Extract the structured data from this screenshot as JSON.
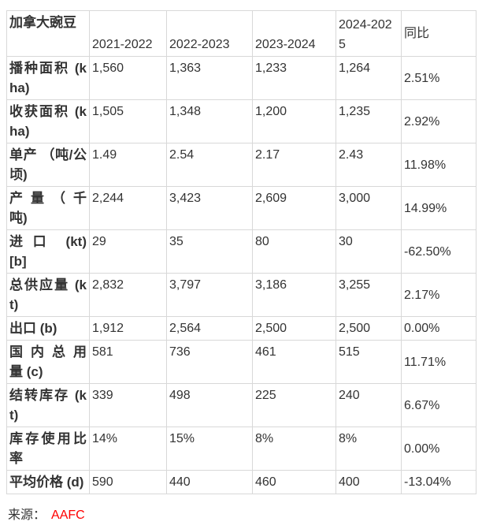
{
  "chart_data": {
    "type": "table",
    "title": "加拿大豌豆",
    "columns": [
      "2021-2022",
      "2022-2023",
      "2023-2024",
      "2024-2025",
      "同比"
    ],
    "rows": [
      {
        "label": "播种面积 (kha)",
        "values": [
          "1,560",
          "1,363",
          "1,233",
          "1,264",
          "2.51%"
        ]
      },
      {
        "label": "收获面积 (kha)",
        "values": [
          "1,505",
          "1,348",
          "1,200",
          "1,235",
          "2.92%"
        ]
      },
      {
        "label": "单产 （吨/公顷)",
        "values": [
          "1.49",
          "2.54",
          "2.17",
          "2.43",
          "11.98%"
        ]
      },
      {
        "label": "产 量 （ 千吨)",
        "values": [
          "2,244",
          "3,423",
          "2,609",
          "3,000",
          "14.99%"
        ]
      },
      {
        "label": "进 口　(kt)[b]",
        "values": [
          "29",
          "35",
          "80",
          "30",
          "-62.50%"
        ]
      },
      {
        "label": "总供应量 (kt)",
        "values": [
          "2,832",
          "3,797",
          "3,186",
          "3,255",
          "2.17%"
        ]
      },
      {
        "label": "出口 (b)",
        "values": [
          "1,912",
          "2,564",
          "2,500",
          "2,500",
          "0.00%"
        ]
      },
      {
        "label": "国 内 总 用 量 (c)",
        "values": [
          "581",
          "736",
          "461",
          "515",
          "11.71%"
        ]
      },
      {
        "label": "结转库存 (kt)",
        "values": [
          "339",
          "498",
          "225",
          "240",
          "6.67%"
        ]
      },
      {
        "label": "库存使用比率",
        "values": [
          "14%",
          "15%",
          "8%",
          "8%",
          "0.00%"
        ]
      },
      {
        "label": "平均价格 (d)",
        "values": [
          "590",
          "440",
          "460",
          "400",
          "-13.04%"
        ]
      }
    ],
    "layout": {
      "grid": "all-borders",
      "border_color": "#d8d8d8",
      "text_color": "#333333",
      "yoy_column_valign": "middle"
    }
  },
  "footer": {
    "source_label": "来源：",
    "source_value": "AAFC",
    "source_color": "#ff0000"
  }
}
